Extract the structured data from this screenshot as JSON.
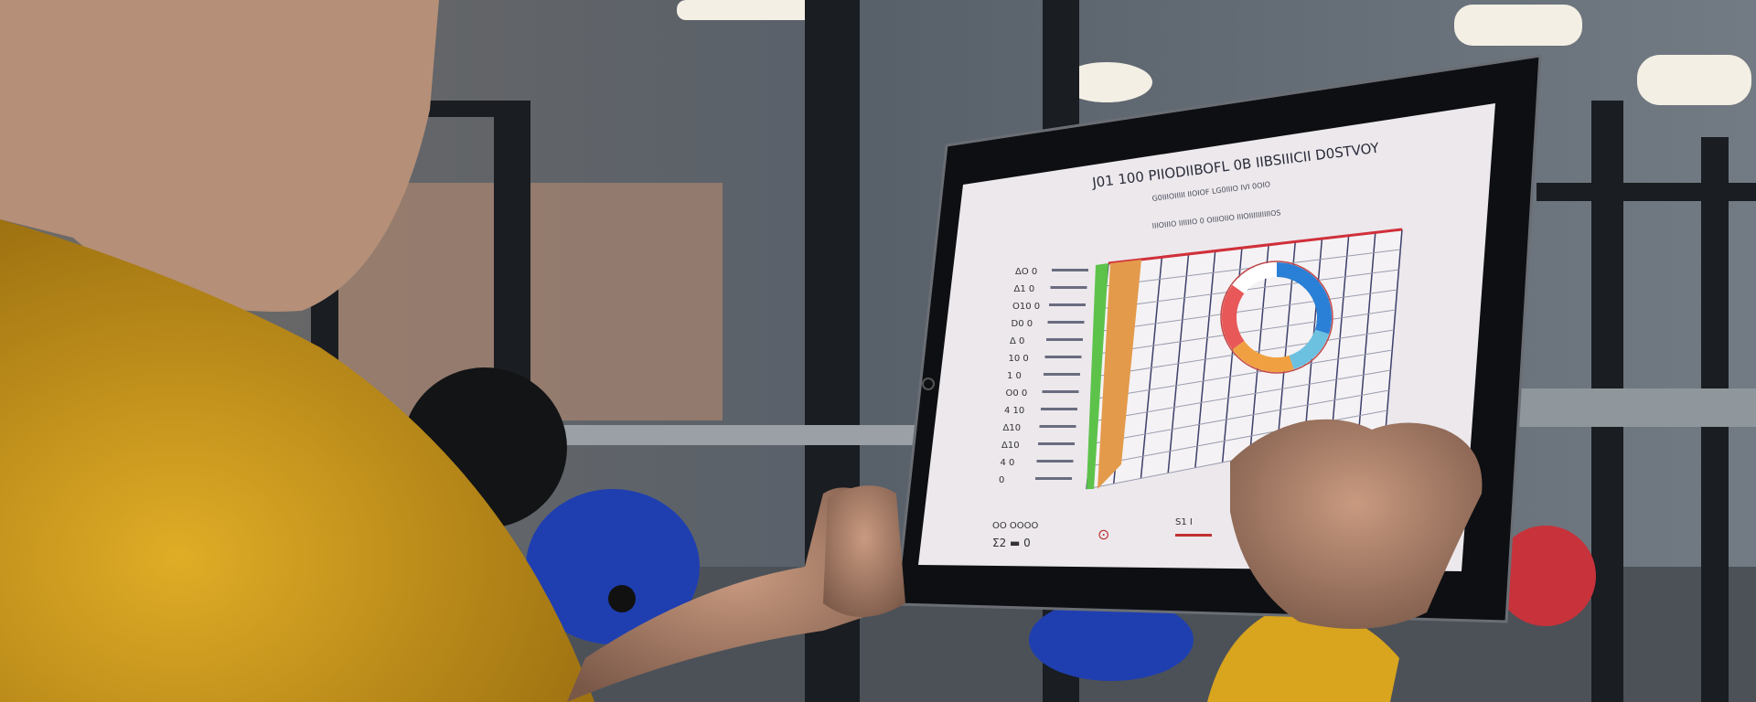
{
  "scene": {
    "description_tag": "gym-tablet-photo",
    "colors": {
      "background": "#5b636c",
      "shirt": "#d8a21c",
      "tablet_bezel": "#0d0f12",
      "screen": "#ece8ec",
      "grid_line": "#3c3f6a",
      "grid_top": "#d0303a",
      "bar_green": "#5dc24a",
      "bar_orange": "#e39a4a",
      "donut_blue": "#2a7fd6",
      "donut_orange": "#f0a040",
      "donut_red": "#e85858",
      "plate_blue": "#1f3fb0"
    }
  },
  "tablet": {
    "title": "J01 100 PIIODIIBOFL 0B IIBSIIICII D0STVOY",
    "subtitle": "G0IIIOIIIII IIOIOF LG0IIIO IVI 0OIO",
    "chart_caption": "IIIOIIIO IIIIIIO 0 OIIIOIIO IIIOIIIIIIIIIIOS",
    "row_labels": [
      "ΔO 0",
      "Δ1 0",
      "O10 0",
      "D0 0",
      "Δ 0",
      "10 0",
      "1 0",
      "O0 0",
      "4 10",
      "Δ10",
      "Δ10",
      "4 0",
      "0"
    ],
    "footer_left": [
      "OO OOOO",
      "Σ2 ▬ 0"
    ],
    "footer_mid": "⊙",
    "footer_right": "S1 I"
  },
  "donut_segments": [
    {
      "label": "blue",
      "value": 30
    },
    {
      "label": "teal",
      "value": 15
    },
    {
      "label": "orange",
      "value": 20
    },
    {
      "label": "red",
      "value": 20
    },
    {
      "label": "white",
      "value": 15
    }
  ]
}
